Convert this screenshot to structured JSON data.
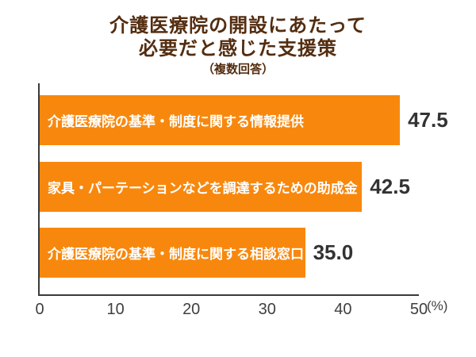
{
  "title": {
    "line1": "介護医療院の開設にあたって",
    "line2": "必要だと感じた支援策",
    "subtitle": "（複数回答）"
  },
  "chart_data": {
    "type": "bar",
    "orientation": "horizontal",
    "title": "介護医療院の開設にあたって必要だと感じた支援策（複数回答）",
    "categories": [
      "介護医療院の基準・制度に関する情報提供",
      "家具・パーテーションなどを調達するための助成金",
      "介護医療院の基準・制度に関する相談窓口"
    ],
    "values": [
      47.5,
      42.5,
      35.0
    ],
    "value_labels": [
      "47.5",
      "42.5",
      "35.0"
    ],
    "xlim": [
      0,
      50
    ],
    "x_ticks": [
      "0",
      "10",
      "20",
      "30",
      "40",
      "50"
    ],
    "x_tick_values": [
      0,
      10,
      20,
      30,
      40,
      50
    ],
    "unit": "(%)",
    "legend": "none",
    "grid": false,
    "colors": {
      "bar": "#F8880D",
      "bar_label": "#FFFFFF",
      "value_label": "#333333",
      "title": "#532D10",
      "axis": "#3A3A3A",
      "tick_label": "#3F3F3F"
    }
  }
}
